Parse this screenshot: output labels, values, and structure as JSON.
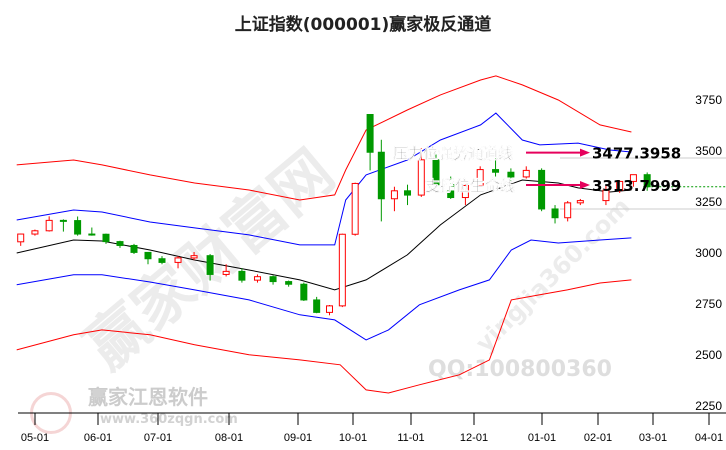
{
  "title": "上证指数(000001)赢家极反通道",
  "watermarks": {
    "main": "赢家财富网",
    "side": "赢家江恩软件",
    "url": "www.360zqgn.com",
    "qq": "QQ:100800360",
    "site": "yingjia360.com",
    "logo": "江赢恩家"
  },
  "annotations": [
    {
      "label": "压力位强势通道线",
      "value": "3477.3958",
      "price": 3477.3958
    },
    {
      "label": "支撑位生命线",
      "value": "3313.7999",
      "price": 3313.7999
    }
  ],
  "colors": {
    "up": "#ff0000",
    "down": "#009900",
    "upper_outer": "#ff0000",
    "upper_inner": "#0000ff",
    "middle": "#000000",
    "lower_inner": "#0000ff",
    "lower_outer": "#ff0000",
    "annotation_arrow": "#e6005c",
    "last_price_line": "#009900"
  },
  "chart_data": {
    "type": "candlestick",
    "title": "上证指数(000001)赢家极反通道",
    "ylim": [
      2250,
      3850
    ],
    "yticks": [
      2250,
      2500,
      2750,
      3000,
      3250,
      3500,
      3750
    ],
    "xticks": [
      "05-01",
      "06-01",
      "07-01",
      "08-01",
      "09-01",
      "10-01",
      "11-01",
      "12-01",
      "01-01",
      "02-01",
      "03-01",
      "04-01"
    ],
    "grid": "horizontal at 3250 and 3500 (right side)",
    "candles": [
      [
        "2024-04-22",
        3050,
        3090,
        3030,
        3088
      ],
      [
        "2024-04-29",
        3088,
        3110,
        3080,
        3104
      ],
      [
        "2024-05-06",
        3104,
        3175,
        3100,
        3155
      ],
      [
        "2024-05-13",
        3155,
        3160,
        3100,
        3154
      ],
      [
        "2024-05-20",
        3154,
        3174,
        3080,
        3088
      ],
      [
        "2024-05-27",
        3088,
        3120,
        3080,
        3087
      ],
      [
        "2024-06-03",
        3087,
        3090,
        3040,
        3051
      ],
      [
        "2024-06-10",
        3051,
        3055,
        3020,
        3032
      ],
      [
        "2024-06-17",
        3032,
        3040,
        2990,
        2998
      ],
      [
        "2024-06-24",
        2998,
        3000,
        2940,
        2967
      ],
      [
        "2024-07-01",
        2967,
        2980,
        2940,
        2949
      ],
      [
        "2024-07-08",
        2949,
        2980,
        2920,
        2971
      ],
      [
        "2024-07-15",
        2971,
        3000,
        2960,
        2982
      ],
      [
        "2024-07-22",
        2982,
        2990,
        2860,
        2890
      ],
      [
        "2024-07-29",
        2890,
        2940,
        2880,
        2905
      ],
      [
        "2024-08-05",
        2905,
        2920,
        2850,
        2862
      ],
      [
        "2024-08-12",
        2862,
        2890,
        2850,
        2879
      ],
      [
        "2024-08-19",
        2879,
        2885,
        2840,
        2855
      ],
      [
        "2024-08-26",
        2855,
        2860,
        2830,
        2842
      ],
      [
        "2024-09-02",
        2842,
        2850,
        2760,
        2765
      ],
      [
        "2024-09-09",
        2765,
        2780,
        2700,
        2704
      ],
      [
        "2024-09-16",
        2704,
        2740,
        2690,
        2736
      ],
      [
        "2024-09-23",
        2736,
        3090,
        2730,
        3087
      ],
      [
        "2024-09-30",
        3087,
        3340,
        3080,
        3336
      ],
      [
        "2024-10-08",
        3674,
        3674,
        3400,
        3489
      ],
      [
        "2024-10-14",
        3489,
        3550,
        3150,
        3261
      ],
      [
        "2024-10-21",
        3261,
        3320,
        3200,
        3300
      ],
      [
        "2024-10-28",
        3300,
        3330,
        3230,
        3279
      ],
      [
        "2024-11-04",
        3279,
        3509,
        3270,
        3452
      ],
      [
        "2024-11-11",
        3452,
        3478,
        3320,
        3330
      ],
      [
        "2024-11-18",
        3330,
        3370,
        3260,
        3267
      ],
      [
        "2024-11-25",
        3267,
        3330,
        3230,
        3326
      ],
      [
        "2024-12-02",
        3326,
        3420,
        3320,
        3404
      ],
      [
        "2024-12-09",
        3404,
        3494,
        3370,
        3391
      ],
      [
        "2024-12-16",
        3391,
        3410,
        3350,
        3368
      ],
      [
        "2024-12-23",
        3368,
        3420,
        3360,
        3400
      ],
      [
        "2024-12-30",
        3400,
        3410,
        3200,
        3211
      ],
      [
        "2025-01-06",
        3211,
        3230,
        3140,
        3168
      ],
      [
        "2025-01-13",
        3168,
        3250,
        3150,
        3241
      ],
      [
        "2025-01-20",
        3241,
        3260,
        3230,
        3252
      ],
      [
        "2025-02-03",
        3252,
        3330,
        3230,
        3303
      ],
      [
        "2025-02-10",
        3303,
        3350,
        3290,
        3346
      ],
      [
        "2025-02-17",
        3346,
        3380,
        3320,
        3379
      ],
      [
        "2025-02-24",
        3379,
        3390,
        3300,
        3320
      ]
    ],
    "lines": [
      {
        "role": "upper_outer",
        "points": [
          [
            "2024-04-22",
            3427
          ],
          [
            "2024-05-20",
            3451
          ],
          [
            "2024-06-03",
            3427
          ],
          [
            "2024-06-27",
            3378
          ],
          [
            "2024-07-17",
            3338
          ],
          [
            "2024-08-10",
            3304
          ],
          [
            "2024-09-02",
            3255
          ],
          [
            "2024-09-21",
            3280
          ],
          [
            "2024-09-27",
            3402
          ],
          [
            "2024-10-08",
            3598
          ],
          [
            "2024-10-30",
            3696
          ],
          [
            "2024-11-15",
            3770
          ],
          [
            "2024-12-04",
            3843
          ],
          [
            "2024-12-11",
            3863
          ],
          [
            "2024-12-23",
            3819
          ],
          [
            "2025-01-10",
            3745
          ],
          [
            "2025-02-02",
            3623
          ],
          [
            "2025-02-18",
            3588
          ]
        ]
      },
      {
        "role": "upper_inner",
        "points": [
          [
            "2024-04-22",
            3157
          ],
          [
            "2024-05-20",
            3206
          ],
          [
            "2024-06-03",
            3196
          ],
          [
            "2024-06-27",
            3147
          ],
          [
            "2024-07-17",
            3118
          ],
          [
            "2024-08-10",
            3084
          ],
          [
            "2024-09-02",
            3035
          ],
          [
            "2024-09-21",
            3035
          ],
          [
            "2024-09-27",
            3255
          ],
          [
            "2024-10-08",
            3378
          ],
          [
            "2024-10-30",
            3451
          ],
          [
            "2024-11-15",
            3549
          ],
          [
            "2024-12-04",
            3623
          ],
          [
            "2024-12-11",
            3681
          ],
          [
            "2024-12-23",
            3549
          ],
          [
            "2024-12-31",
            3525
          ],
          [
            "2025-01-21",
            3534
          ],
          [
            "2025-02-07",
            3500
          ],
          [
            "2025-02-18",
            3490
          ]
        ]
      },
      {
        "role": "middle",
        "points": [
          [
            "2024-04-22",
            2995
          ],
          [
            "2024-05-20",
            3059
          ],
          [
            "2024-06-03",
            3054
          ],
          [
            "2024-06-27",
            3010
          ],
          [
            "2024-07-17",
            2961
          ],
          [
            "2024-08-10",
            2912
          ],
          [
            "2024-09-02",
            2863
          ],
          [
            "2024-09-21",
            2814
          ],
          [
            "2024-10-08",
            2863
          ],
          [
            "2024-10-30",
            2986
          ],
          [
            "2024-11-15",
            3133
          ],
          [
            "2024-12-04",
            3280
          ],
          [
            "2024-12-23",
            3353
          ],
          [
            "2025-01-10",
            3338
          ],
          [
            "2025-01-21",
            3314
          ],
          [
            "2025-02-07",
            3294
          ],
          [
            "2025-02-18",
            3304
          ]
        ]
      },
      {
        "role": "lower_inner",
        "points": [
          [
            "2024-04-22",
            2839
          ],
          [
            "2024-05-20",
            2888
          ],
          [
            "2024-06-03",
            2888
          ],
          [
            "2024-06-27",
            2853
          ],
          [
            "2024-07-17",
            2814
          ],
          [
            "2024-08-10",
            2765
          ],
          [
            "2024-09-02",
            2692
          ],
          [
            "2024-09-21",
            2667
          ],
          [
            "2024-10-08",
            2569
          ],
          [
            "2024-10-20",
            2618
          ],
          [
            "2024-11-05",
            2741
          ],
          [
            "2024-11-24",
            2814
          ],
          [
            "2024-12-08",
            2863
          ],
          [
            "2024-12-18",
            3010
          ],
          [
            "2024-12-27",
            3059
          ],
          [
            "2025-01-10",
            3044
          ],
          [
            "2025-02-02",
            3059
          ],
          [
            "2025-02-18",
            3069
          ]
        ]
      },
      {
        "role": "lower_outer",
        "points": [
          [
            "2024-04-22",
            2520
          ],
          [
            "2024-05-20",
            2594
          ],
          [
            "2024-06-03",
            2618
          ],
          [
            "2024-06-27",
            2594
          ],
          [
            "2024-07-17",
            2545
          ],
          [
            "2024-08-10",
            2496
          ],
          [
            "2024-09-02",
            2471
          ],
          [
            "2024-09-24",
            2447
          ],
          [
            "2024-10-08",
            2324
          ],
          [
            "2024-10-20",
            2309
          ],
          [
            "2024-11-05",
            2349
          ],
          [
            "2024-11-24",
            2398
          ],
          [
            "2024-12-08",
            2471
          ],
          [
            "2024-12-18",
            2765
          ],
          [
            "2024-12-31",
            2790
          ],
          [
            "2025-01-15",
            2814
          ],
          [
            "2025-02-02",
            2848
          ],
          [
            "2025-02-18",
            2863
          ]
        ]
      }
    ]
  }
}
